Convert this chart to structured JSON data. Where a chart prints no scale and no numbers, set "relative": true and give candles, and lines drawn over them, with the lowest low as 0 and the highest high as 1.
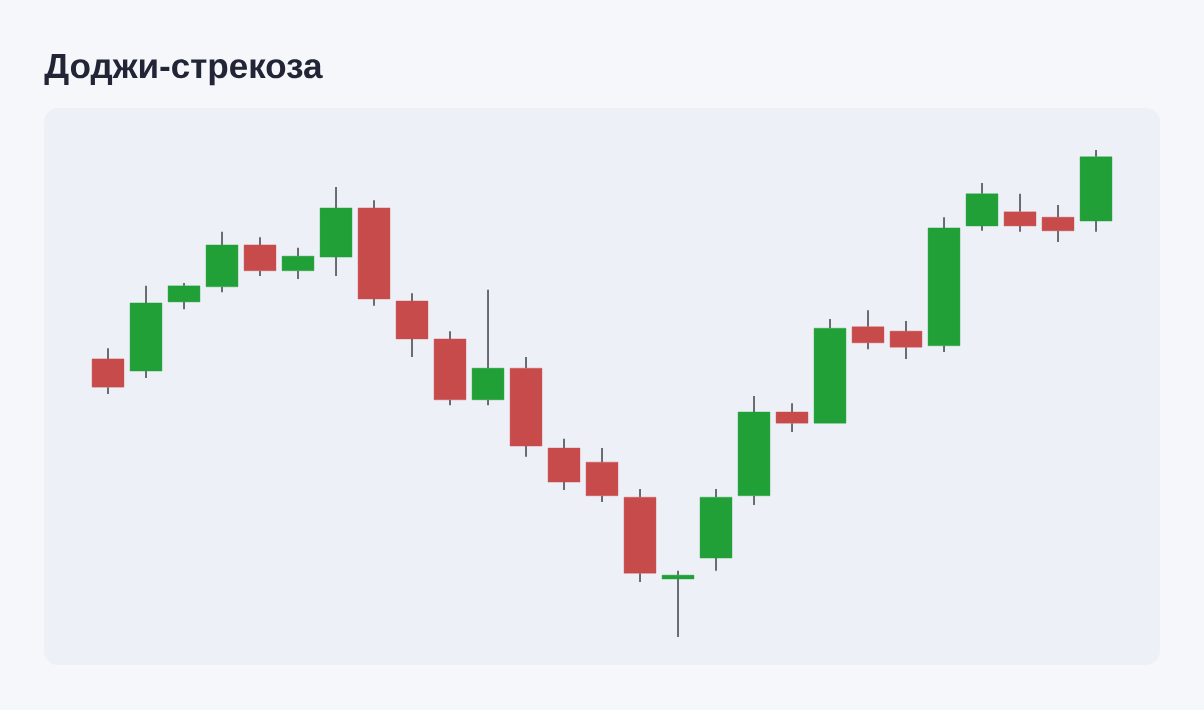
{
  "chart_data": {
    "type": "candlestick",
    "title": "Доджи-стрекоза",
    "relative": true,
    "categories": [
      null,
      null,
      null,
      null,
      null,
      null,
      null,
      null,
      null,
      null,
      null,
      null,
      null,
      null,
      null,
      null,
      null,
      null,
      null,
      null,
      null,
      null,
      null,
      null,
      null,
      null,
      null
    ],
    "ohlc": [
      [
        0.571,
        0.593,
        0.499,
        0.513
      ],
      [
        0.546,
        0.721,
        0.532,
        0.686
      ],
      [
        0.688,
        0.727,
        0.673,
        0.721
      ],
      [
        0.719,
        0.832,
        0.708,
        0.805
      ],
      [
        0.805,
        0.821,
        0.741,
        0.752
      ],
      [
        0.752,
        0.799,
        0.735,
        0.782
      ],
      [
        0.78,
        0.924,
        0.741,
        0.881
      ],
      [
        0.881,
        0.897,
        0.68,
        0.694
      ],
      [
        0.69,
        0.706,
        0.575,
        0.612
      ],
      [
        0.612,
        0.628,
        0.476,
        0.487
      ],
      [
        0.487,
        0.713,
        0.476,
        0.552
      ],
      [
        0.552,
        0.575,
        0.37,
        0.392
      ],
      [
        0.388,
        0.407,
        0.302,
        0.318
      ],
      [
        0.359,
        0.388,
        0.277,
        0.29
      ],
      [
        0.287,
        0.304,
        0.113,
        0.131
      ],
      [
        0.119,
        0.136,
        0,
        0.127
      ],
      [
        0.162,
        0.304,
        0.136,
        0.287
      ],
      [
        0.29,
        0.495,
        0.271,
        0.462
      ],
      [
        0.462,
        0.48,
        0.421,
        0.439
      ],
      [
        0.439,
        0.653,
        0.439,
        0.634
      ],
      [
        0.637,
        0.671,
        0.591,
        0.604
      ],
      [
        0.628,
        0.649,
        0.571,
        0.595
      ],
      [
        0.598,
        0.862,
        0.585,
        0.84
      ],
      [
        0.844,
        0.932,
        0.834,
        0.91
      ],
      [
        0.873,
        0.91,
        0.832,
        0.844
      ],
      [
        0.862,
        0.887,
        0.811,
        0.834
      ],
      [
        0.854,
        1,
        0.832,
        0.986
      ]
    ],
    "colors": [
      "#c84b4b",
      "#21a038",
      "#21a038",
      "#21a038",
      "#c84b4b",
      "#21a038",
      "#21a038",
      "#c84b4b",
      "#c84b4b",
      "#c84b4b",
      "#21a038",
      "#c84b4b",
      "#c84b4b",
      "#c84b4b",
      "#c84b4b",
      "#21a038",
      "#21a038",
      "#21a038",
      "#c84b4b",
      "#21a038",
      "#c84b4b",
      "#c84b4b",
      "#21a038",
      "#21a038",
      "#c84b4b",
      "#c84b4b",
      "#21a038"
    ]
  }
}
